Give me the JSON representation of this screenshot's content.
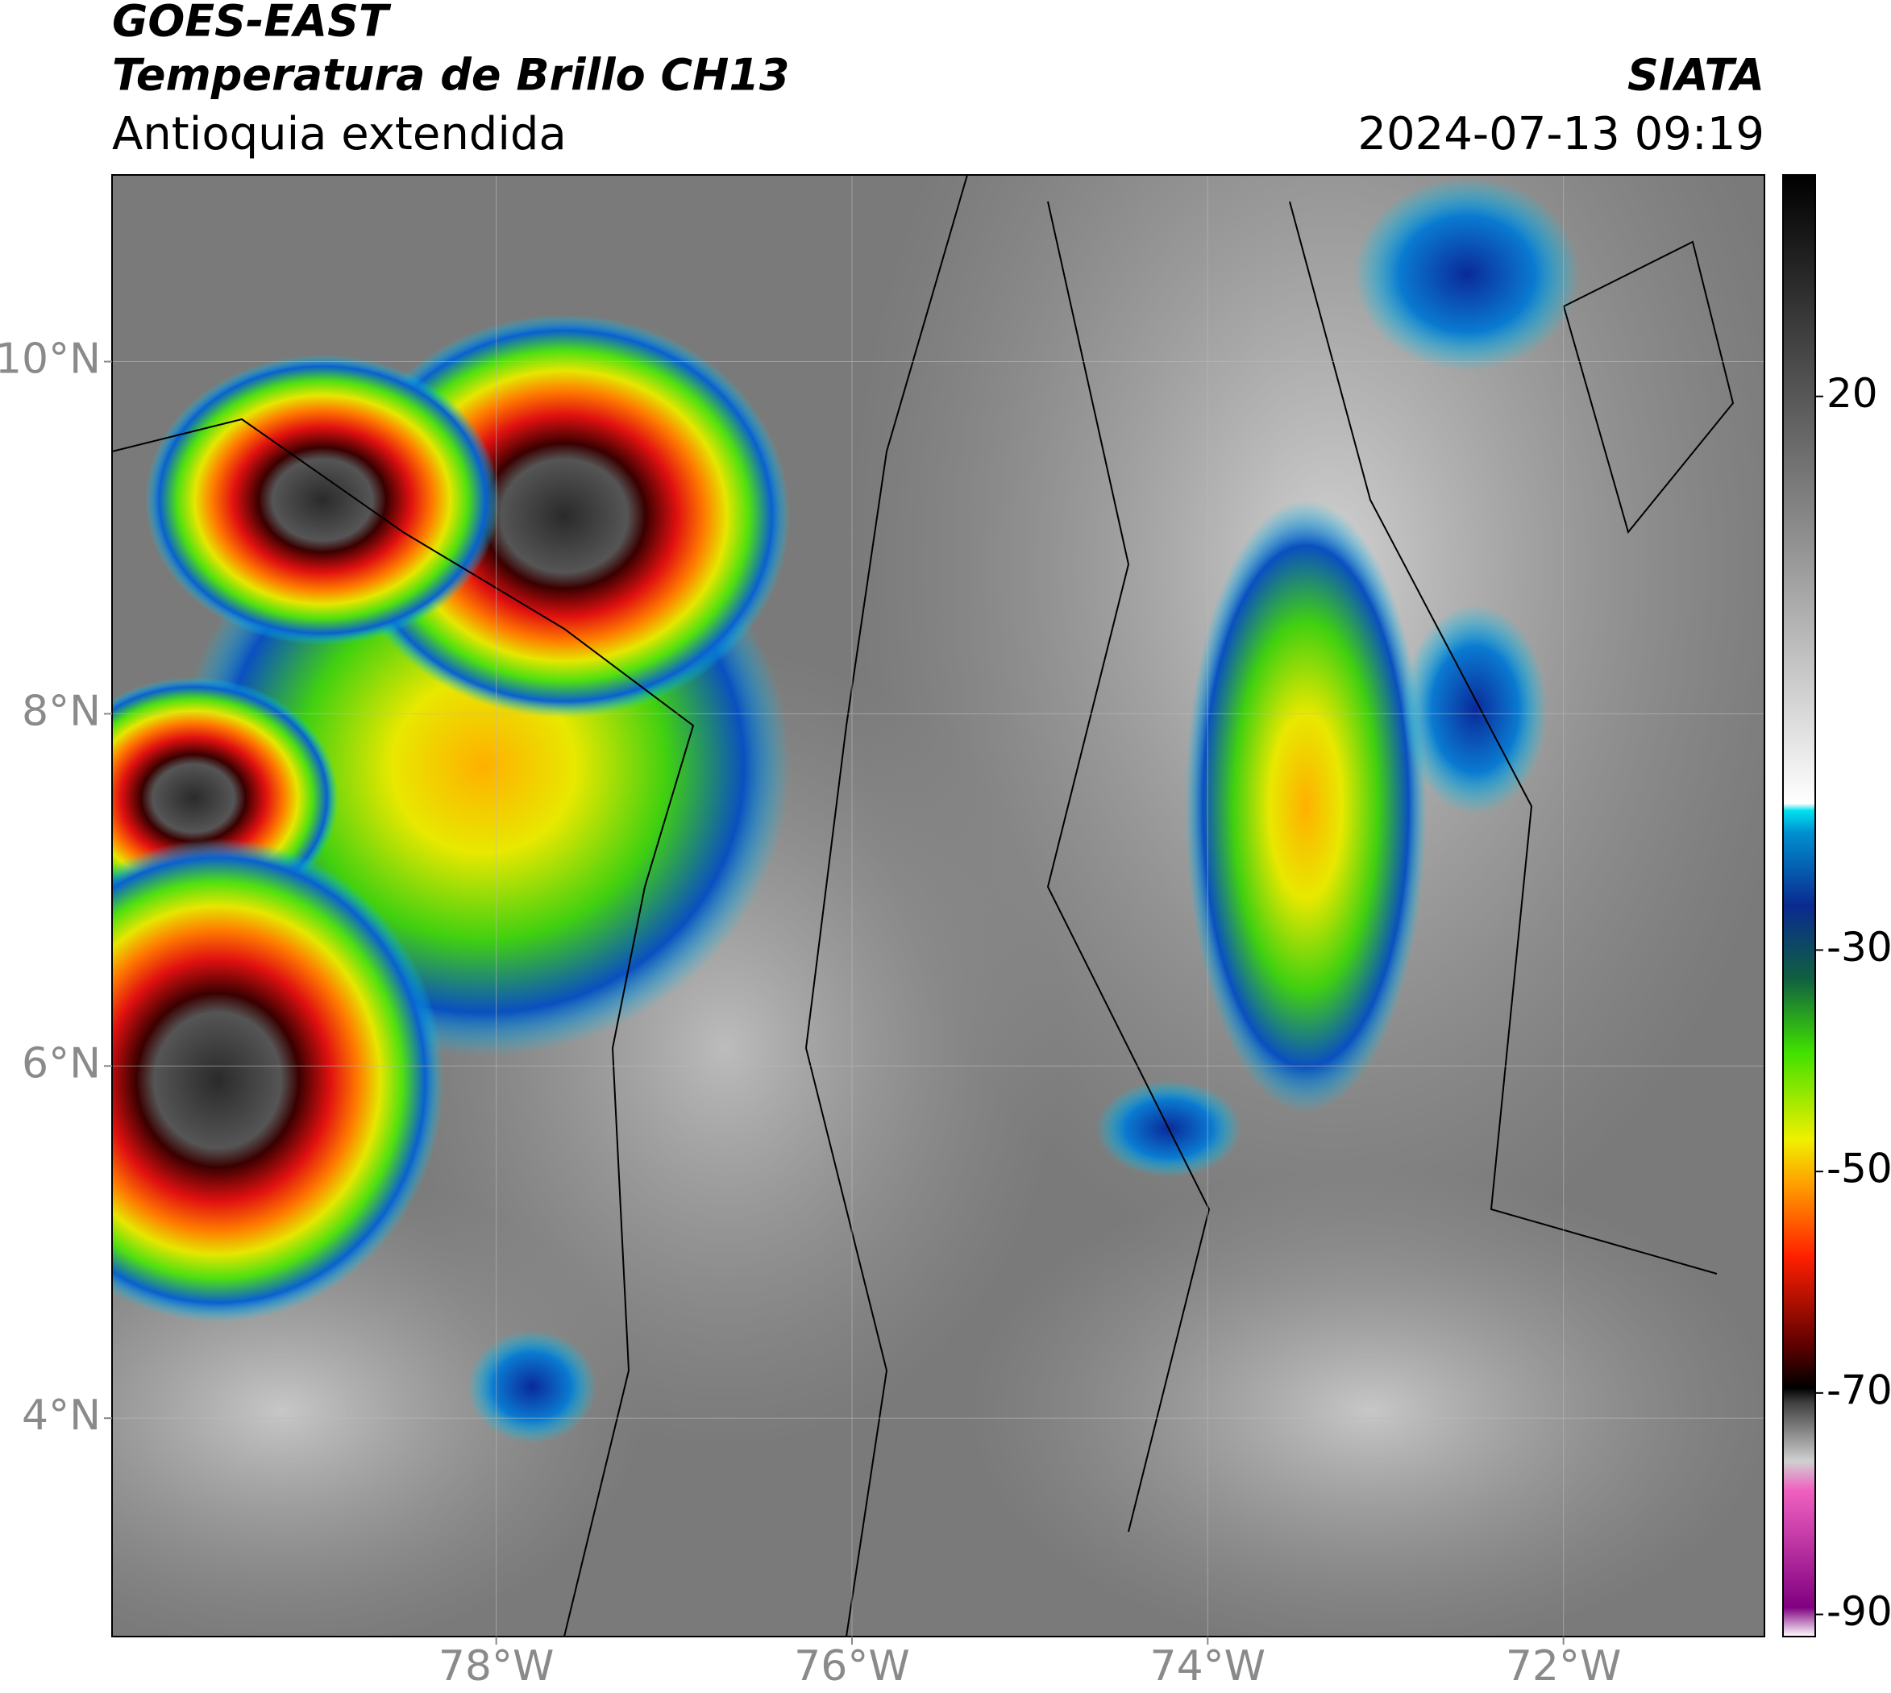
{
  "chart_data": {
    "type": "map",
    "title": "GOES-EAST",
    "subtitle": "Temperatura de Brillo CH13",
    "region": "Antioquia extendida",
    "source": "SIATA",
    "datetime": "2024-07-13 09:19",
    "xlim": [
      -80.16,
      -70.87
    ],
    "ylim": [
      2.76,
      11.06
    ],
    "xticks": [
      {
        "value": -78,
        "label": "78°W"
      },
      {
        "value": -76,
        "label": "76°W"
      },
      {
        "value": -74,
        "label": "74°W"
      },
      {
        "value": -72,
        "label": "72°W"
      }
    ],
    "yticks": [
      {
        "value": 10,
        "label": "10°N"
      },
      {
        "value": 8,
        "label": "8°N"
      },
      {
        "value": 6,
        "label": "6°N"
      },
      {
        "value": 4,
        "label": "4°N"
      }
    ],
    "grid": true,
    "colorbar": {
      "lim": [
        -92,
        40
      ],
      "ticks": [
        20,
        -30,
        -50,
        -70,
        -90
      ]
    }
  }
}
